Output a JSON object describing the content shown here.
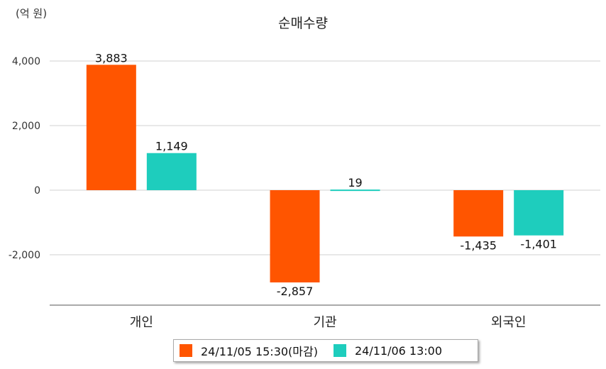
{
  "chart_data": {
    "type": "bar",
    "title": "순매수량",
    "unit_label": "(억 원)",
    "categories": [
      "개인",
      "기관",
      "외국인"
    ],
    "series": [
      {
        "name": "24/11/05 15:30(마감)",
        "color": "#ff5500",
        "values": [
          3883,
          -2857,
          -1435
        ],
        "labels": [
          "3,883",
          "-2,857",
          "-1,435"
        ]
      },
      {
        "name": "24/11/06 13:00",
        "color": "#1ecdbd",
        "values": [
          1149,
          19,
          -1401
        ],
        "labels": [
          "1,149",
          "19",
          "-1,401"
        ]
      }
    ],
    "yticks": [
      4000,
      2000,
      0,
      -2000
    ],
    "ytick_labels": [
      "4,000",
      "2,000",
      "0",
      "-2,000"
    ],
    "ylim": [
      -3500,
      4000
    ],
    "grid": true,
    "legend_position": "bottom"
  }
}
